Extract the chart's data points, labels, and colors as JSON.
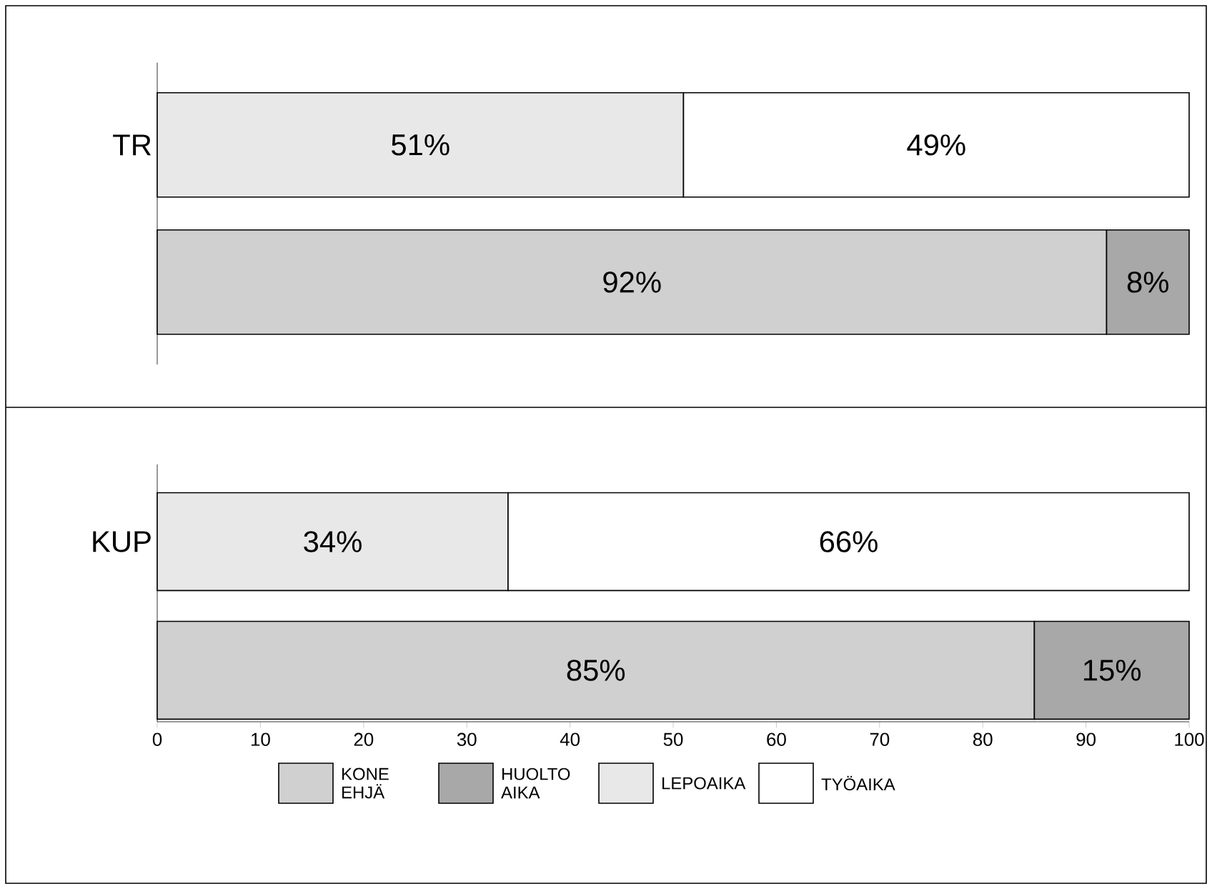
{
  "chart_data": [
    {
      "type": "bar",
      "orientation": "horizontal",
      "stacked": true,
      "categories": [
        "TR",
        null
      ],
      "xlim": [
        0,
        100
      ],
      "xticks": [
        0,
        10,
        20,
        30,
        40,
        50,
        60,
        70,
        80,
        90,
        100
      ],
      "tick_labels": "y",
      "series": [
        {
          "color": "#d0d0d0",
          "values": [
            null,
            92
          ],
          "value_labels": [
            null,
            "92%"
          ]
        },
        {
          "color": "#a8a8a8",
          "values": [
            null,
            8
          ],
          "value_labels": [
            null,
            "8%"
          ]
        },
        {
          "color": "#e8e8e8",
          "values": [
            51,
            null
          ],
          "value_labels": [
            "51%",
            null
          ]
        },
        {
          "color": "#ffffff",
          "values": [
            49,
            null
          ],
          "value_labels": [
            "49%",
            null
          ]
        }
      ]
    },
    {
      "type": "bar",
      "orientation": "horizontal",
      "stacked": true,
      "categories": [
        "KUP",
        null
      ],
      "xlim": [
        0,
        100
      ],
      "xticks": [
        0,
        10,
        20,
        30,
        40,
        50,
        60,
        70,
        80,
        90,
        100
      ],
      "legend": "bottom",
      "series": [
        {
          "name": "KONE EHJÄ",
          "color": "#d0d0d0",
          "values": [
            null,
            85
          ],
          "value_labels": [
            null,
            "85%"
          ]
        },
        {
          "name": "HUOLTO AIKA",
          "color": "#a8a8a8",
          "values": [
            null,
            15
          ],
          "value_labels": [
            null,
            "15%"
          ]
        },
        {
          "name": "LEPOAIKA",
          "color": "#e8e8e8",
          "values": [
            34,
            null
          ],
          "value_labels": [
            "34%",
            null
          ]
        },
        {
          "name": "TYÖAIKA",
          "color": "#ffffff",
          "values": [
            66,
            null
          ],
          "value_labels": [
            "66%",
            null
          ]
        }
      ]
    }
  ]
}
